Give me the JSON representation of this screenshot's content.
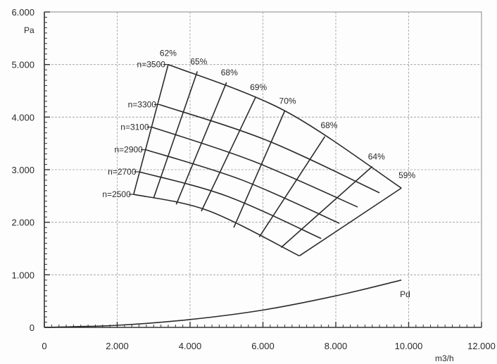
{
  "chart_data": {
    "type": "line",
    "title": "",
    "xlabel": "m3/h",
    "ylabel": "Pa",
    "xlim": [
      0,
      12000
    ],
    "ylim": [
      0,
      6000
    ],
    "grid": true,
    "x_ticks": [
      {
        "value": 0,
        "label": "0"
      },
      {
        "value": 2000,
        "label": "2.000"
      },
      {
        "value": 4000,
        "label": "4.000"
      },
      {
        "value": 6000,
        "label": "6.000"
      },
      {
        "value": 8000,
        "label": "8.000"
      },
      {
        "value": 10000,
        "label": "10.000"
      },
      {
        "value": 12000,
        "label": "12.000"
      }
    ],
    "y_ticks": [
      {
        "value": 0,
        "label": "0"
      },
      {
        "value": 1000,
        "label": "1.000"
      },
      {
        "value": 2000,
        "label": "2.000"
      },
      {
        "value": 3000,
        "label": "3.000"
      },
      {
        "value": 4000,
        "label": "4.000"
      },
      {
        "value": 5000,
        "label": "5.000"
      },
      {
        "value": 6000,
        "label": "6.000"
      }
    ],
    "speed_curves": [
      {
        "name": "n=2500",
        "points": [
          [
            2450,
            2530
          ],
          [
            4500,
            2220
          ],
          [
            7000,
            1360
          ]
        ]
      },
      {
        "name": "n=2700",
        "points": [
          [
            2600,
            2960
          ],
          [
            5000,
            2500
          ],
          [
            7600,
            1690
          ]
        ]
      },
      {
        "name": "n=2900",
        "points": [
          [
            2780,
            3380
          ],
          [
            5400,
            2810
          ],
          [
            8100,
            1980
          ]
        ]
      },
      {
        "name": "n=3100",
        "points": [
          [
            2950,
            3810
          ],
          [
            5700,
            3170
          ],
          [
            8600,
            2290
          ]
        ]
      },
      {
        "name": "n=3300",
        "points": [
          [
            3150,
            4240
          ],
          [
            6100,
            3560
          ],
          [
            9200,
            2560
          ]
        ]
      },
      {
        "name": "n=3500",
        "points": [
          [
            3400,
            5000
          ],
          [
            6600,
            4120
          ],
          [
            9800,
            2650
          ]
        ]
      }
    ],
    "efficiency_lines": [
      {
        "name": "62%",
        "points": [
          [
            3400,
            5000
          ],
          [
            2450,
            2530
          ]
        ]
      },
      {
        "name": "65%",
        "points": [
          [
            4200,
            4870
          ],
          [
            3000,
            2460
          ]
        ]
      },
      {
        "name": "68%",
        "points": [
          [
            5000,
            4660
          ],
          [
            3620,
            2340
          ]
        ]
      },
      {
        "name": "69%",
        "points": [
          [
            5800,
            4380
          ],
          [
            4310,
            2210
          ]
        ]
      },
      {
        "name": "70%",
        "points": [
          [
            6600,
            4120
          ],
          [
            5200,
            1900
          ]
        ]
      },
      {
        "name": "68%",
        "points": [
          [
            7700,
            3630
          ],
          [
            5900,
            1720
          ]
        ]
      },
      {
        "name": "64%",
        "points": [
          [
            9000,
            3060
          ],
          [
            6500,
            1520
          ]
        ]
      },
      {
        "name": "59%",
        "points": [
          [
            9800,
            2650
          ],
          [
            7000,
            1360
          ]
        ]
      }
    ],
    "pd_curve": {
      "name": "Pd",
      "points": [
        [
          0,
          0
        ],
        [
          2000,
          40
        ],
        [
          4000,
          150
        ],
        [
          6000,
          330
        ],
        [
          8000,
          600
        ],
        [
          9800,
          900
        ]
      ]
    }
  }
}
